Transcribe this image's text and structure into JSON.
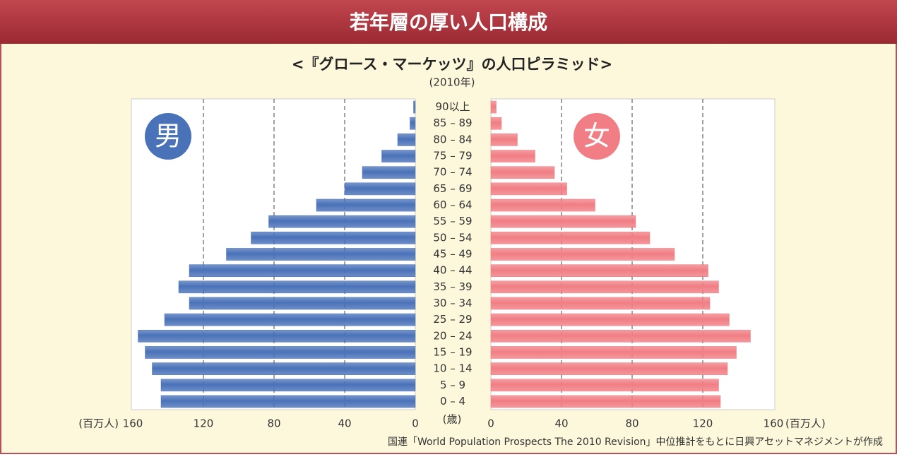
{
  "chart_data": {
    "type": "pyramid",
    "title": "若年層の厚い人口構成",
    "subtitle": "<『グロース・マーケッツ』の人口ピラミッド>",
    "date_label": "(2010年)",
    "categories": [
      "0 – 4",
      "5 – 9",
      "10 – 14",
      "15 – 19",
      "20 – 24",
      "25 – 29",
      "30 – 34",
      "35 – 39",
      "40 – 44",
      "45 – 49",
      "50 – 54",
      "55 – 59",
      "60 – 64",
      "65 – 69",
      "70 – 74",
      "75 – 79",
      "80 – 84",
      "85 – 89",
      "90以上"
    ],
    "series": [
      {
        "name": "男",
        "color": "#4a72b8",
        "values": [
          144,
          144,
          149,
          153,
          157,
          142,
          128,
          134,
          128,
          107,
          93,
          83,
          56,
          40,
          30,
          19,
          10,
          3,
          1
        ]
      },
      {
        "name": "女",
        "color": "#f07e84",
        "values": [
          130,
          129,
          134,
          139,
          147,
          135,
          124,
          129,
          123,
          104,
          90,
          82,
          59,
          43,
          36,
          25,
          15,
          6,
          3
        ]
      }
    ],
    "xlim": [
      0,
      160
    ],
    "xticks": [
      0,
      40,
      80,
      120,
      160
    ],
    "x_unit": "(百万人)",
    "y_unit": "(歳)",
    "grid": true,
    "source": "国連「World Population Prospects The 2010 Revision」中位推計をもとに日興アセットマネジメントが作成"
  }
}
